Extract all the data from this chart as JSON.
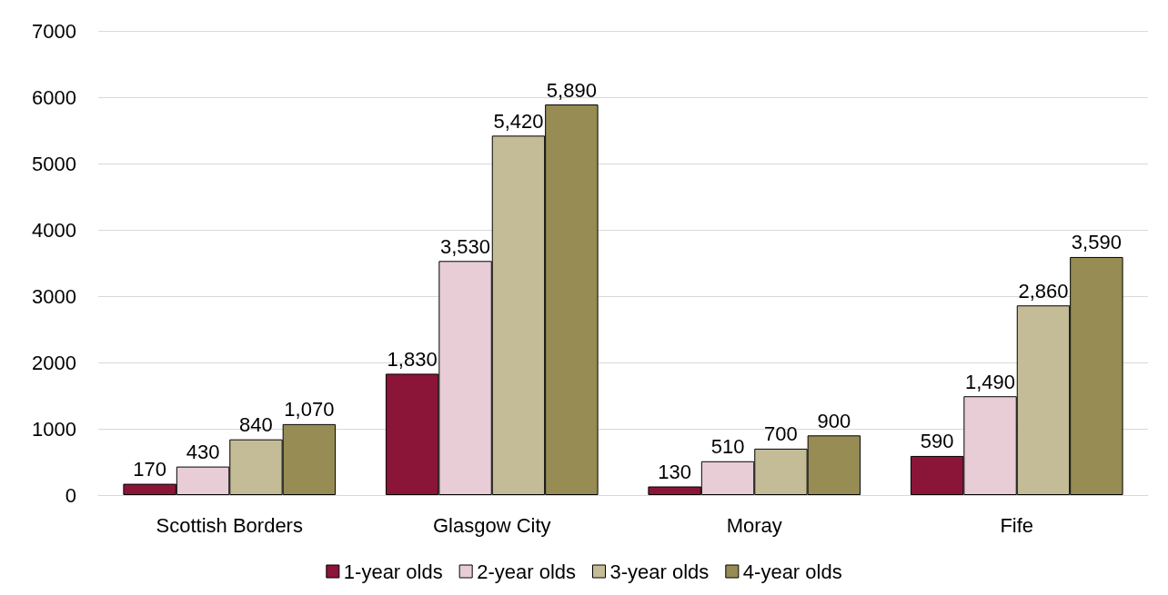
{
  "chart_data": {
    "type": "bar",
    "categories": [
      "Scottish Borders",
      "Glasgow City",
      "Moray",
      "Fife"
    ],
    "series": [
      {
        "name": "1-year olds",
        "color": "#8b1538",
        "values": [
          170,
          1830,
          130,
          590
        ],
        "value_labels": [
          "170",
          "1,830",
          "130",
          "590"
        ]
      },
      {
        "name": "2-year olds",
        "color": "#e8cdd6",
        "values": [
          430,
          3530,
          510,
          1490
        ],
        "value_labels": [
          "430",
          "3,530",
          "510",
          "1,490"
        ]
      },
      {
        "name": "3-year olds",
        "color": "#c4bc96",
        "values": [
          840,
          5420,
          700,
          2860
        ],
        "value_labels": [
          "840",
          "5,420",
          "700",
          "2,860"
        ]
      },
      {
        "name": "4-year olds",
        "color": "#968c54",
        "values": [
          1070,
          5890,
          900,
          3590
        ],
        "value_labels": [
          "1,070",
          "5,890",
          "900",
          "3,590"
        ]
      }
    ],
    "ylim": [
      0,
      7000
    ],
    "yticks": [
      0,
      1000,
      2000,
      3000,
      4000,
      5000,
      6000,
      7000
    ],
    "grid": "y",
    "legend": "bottom"
  }
}
